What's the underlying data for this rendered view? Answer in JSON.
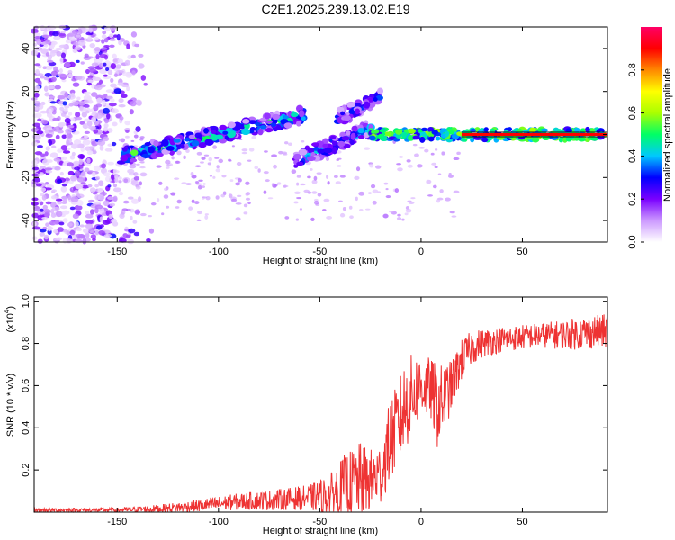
{
  "title": "C2E1.2025.239.13.02.E19",
  "chart_data": [
    {
      "type": "heatmap",
      "xlabel": "Height of straight line (km)",
      "ylabel": "Frequency (Hz)",
      "xlim": [
        -191,
        92
      ],
      "ylim": [
        -50,
        50
      ],
      "xticks": [
        -150,
        -100,
        -50,
        0,
        50
      ],
      "xtick_labels": [
        "-150",
        "-100",
        "-50",
        "0",
        "50"
      ],
      "yticks": [
        -40,
        -20,
        0,
        20,
        40
      ],
      "ytick_labels": [
        "-40",
        "-20",
        "0",
        "20",
        "40"
      ],
      "colorbar": {
        "label": "Normalized spectral amplitude",
        "range": [
          0,
          1
        ],
        "ticks": [
          0.0,
          0.2,
          0.4,
          0.6,
          0.8
        ],
        "tick_labels": [
          "0.0",
          "0.2",
          "0.4",
          "0.6",
          "0.8"
        ],
        "colors": [
          "#ffffff",
          "#cc99ff",
          "#7a00ff",
          "#0000ff",
          "#00c8ff",
          "#00ff66",
          "#aaff00",
          "#ffff00",
          "#ff8800",
          "#ff0000",
          "#ff0066"
        ]
      },
      "features": [
        {
          "name": "rising branch",
          "x": [
            -148,
            -58
          ],
          "freq_start": -10,
          "freq_end": 9,
          "amplitude": 0.35
        },
        {
          "name": "lower branch",
          "x": [
            -62,
            -24
          ],
          "freq_start": -12,
          "freq_end": 3,
          "amplitude": 0.3
        },
        {
          "name": "upper branch",
          "x": [
            -42,
            -20
          ],
          "freq_start": 7,
          "freq_end": 18,
          "amplitude": 0.25
        },
        {
          "name": "flat trace",
          "x": [
            -25,
            92
          ],
          "freq_start": 0,
          "freq_end": 0,
          "amplitude": 0.9
        },
        {
          "name": "left noise field",
          "x": [
            -191,
            -140
          ],
          "freq_range": [
            -50,
            50
          ],
          "amplitude": 0.15
        }
      ]
    },
    {
      "type": "line",
      "xlabel": "Height of straight line (km)",
      "ylabel": "SNR (10 * v/v)",
      "scale_label": "(x10",
      "scale_exponent": "4",
      "xlim": [
        -191,
        92
      ],
      "ylim": [
        0,
        1.02
      ],
      "xticks": [
        -150,
        -100,
        -50,
        0,
        50
      ],
      "xtick_labels": [
        "-150",
        "-100",
        "-50",
        "0",
        "50"
      ],
      "yticks": [
        0.2,
        0.4,
        0.6,
        0.8,
        1.0
      ],
      "ytick_labels": [
        "0.2",
        "0.4",
        "0.6",
        "0.8",
        "1.0"
      ],
      "color": "#ee3333",
      "envelope": {
        "x": [
          -191,
          -150,
          -130,
          -110,
          -90,
          -70,
          -55,
          -45,
          -38,
          -30,
          -25,
          -20,
          -15,
          -12,
          -8,
          -5,
          0,
          5,
          8,
          10,
          15,
          20,
          25,
          30,
          40,
          50,
          60,
          70,
          80,
          92
        ],
        "base": [
          0.01,
          0.01,
          0.015,
          0.03,
          0.05,
          0.06,
          0.07,
          0.08,
          0.12,
          0.15,
          0.15,
          0.18,
          0.35,
          0.4,
          0.5,
          0.55,
          0.6,
          0.58,
          0.5,
          0.52,
          0.6,
          0.72,
          0.78,
          0.8,
          0.82,
          0.83,
          0.84,
          0.84,
          0.85,
          0.86
        ],
        "amp": [
          0.01,
          0.01,
          0.02,
          0.03,
          0.04,
          0.05,
          0.06,
          0.1,
          0.15,
          0.18,
          0.15,
          0.15,
          0.2,
          0.2,
          0.22,
          0.2,
          0.15,
          0.15,
          0.2,
          0.18,
          0.12,
          0.1,
          0.08,
          0.07,
          0.06,
          0.06,
          0.06,
          0.07,
          0.08,
          0.08
        ]
      }
    }
  ]
}
